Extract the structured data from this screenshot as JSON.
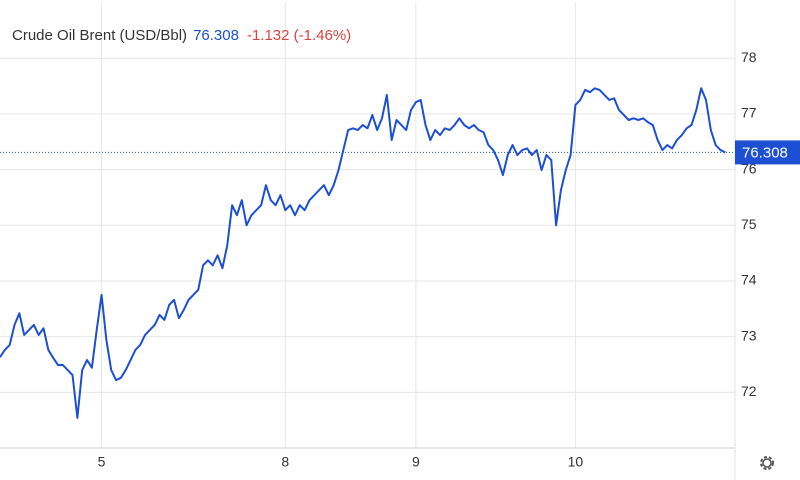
{
  "chart_data": {
    "type": "line",
    "title": "Crude Oil Brent (USD/Bbl)",
    "change": "-1.132 (-1.46%)",
    "color": "#1d4fd3",
    "grid": true,
    "values": [
      72.63,
      72.76,
      72.85,
      73.21,
      73.42,
      73.03,
      73.12,
      73.21,
      73.03,
      73.15,
      72.76,
      72.62,
      72.49,
      72.49,
      72.4,
      72.31,
      71.54,
      72.4,
      72.58,
      72.44,
      73.12,
      73.75,
      72.94,
      72.4,
      72.22,
      72.26,
      72.4,
      72.58,
      72.76,
      72.85,
      73.03,
      73.12,
      73.21,
      73.39,
      73.3,
      73.57,
      73.66,
      73.33,
      73.48,
      73.66,
      73.75,
      73.84,
      74.28,
      74.37,
      74.28,
      74.46,
      74.23,
      74.64,
      75.36,
      75.18,
      75.45,
      75.0,
      75.18,
      75.27,
      75.36,
      75.72,
      75.45,
      75.36,
      75.54,
      75.27,
      75.36,
      75.18,
      75.36,
      75.27,
      75.45,
      75.54,
      75.63,
      75.72,
      75.54,
      75.72,
      75.99,
      76.35,
      76.71,
      76.74,
      76.71,
      76.8,
      76.74,
      76.98,
      76.71,
      76.92,
      77.34,
      76.53,
      76.89,
      76.8,
      76.71,
      77.07,
      77.21,
      77.25,
      76.8,
      76.53,
      76.71,
      76.62,
      76.74,
      76.71,
      76.8,
      76.92,
      76.8,
      76.74,
      76.8,
      76.71,
      76.67,
      76.44,
      76.35,
      76.17,
      75.9,
      76.26,
      76.44,
      76.26,
      76.35,
      76.38,
      76.26,
      76.35,
      75.99,
      76.26,
      76.17,
      75.0,
      75.63,
      75.99,
      76.26,
      77.16,
      77.25,
      77.43,
      77.39,
      77.46,
      77.43,
      77.34,
      77.25,
      77.28,
      77.07,
      76.98,
      76.89,
      76.92,
      76.89,
      76.92,
      76.85,
      76.8,
      76.53,
      76.35,
      76.44,
      76.38,
      76.53,
      76.62,
      76.74,
      76.8,
      77.07,
      77.46,
      77.25,
      76.71,
      76.44,
      76.35,
      76.308
    ],
    "xlim": [
      0,
      152
    ],
    "xticks": [
      {
        "value": 21,
        "label": "5"
      },
      {
        "value": 59,
        "label": "8"
      },
      {
        "value": 86,
        "label": "9"
      },
      {
        "value": 119,
        "label": "10"
      }
    ],
    "ylim": [
      71,
      79
    ],
    "yticks": [
      72,
      73,
      74,
      75,
      76,
      77,
      78
    ]
  }
}
